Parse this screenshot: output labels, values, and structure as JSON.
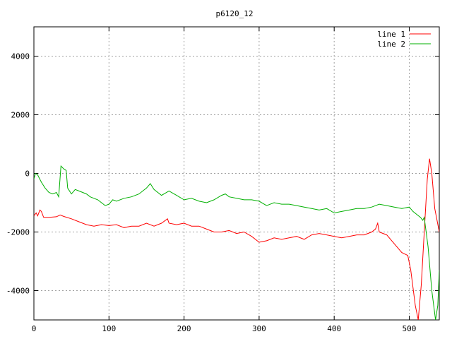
{
  "chart_data": {
    "type": "line",
    "title": "p6120_12",
    "xlabel": "",
    "ylabel": "",
    "xlim": [
      0,
      540
    ],
    "ylim": [
      -5000,
      5000
    ],
    "x_ticks": [
      0,
      100,
      200,
      300,
      400,
      500
    ],
    "y_ticks": [
      -4000,
      -2000,
      0,
      2000,
      4000
    ],
    "x_tick_labels": [
      "0",
      "100",
      "200",
      "300",
      "400",
      "500"
    ],
    "y_tick_labels": [
      "-4000",
      "-2000",
      "0",
      "2000",
      "4000"
    ],
    "grid": true,
    "legend_position": "top-right",
    "series": [
      {
        "name": "line 1",
        "color": "#ff0000",
        "points": [
          [
            0,
            -1450
          ],
          [
            3,
            -1350
          ],
          [
            5,
            -1450
          ],
          [
            8,
            -1250
          ],
          [
            10,
            -1300
          ],
          [
            13,
            -1500
          ],
          [
            20,
            -1500
          ],
          [
            30,
            -1480
          ],
          [
            35,
            -1420
          ],
          [
            40,
            -1470
          ],
          [
            50,
            -1550
          ],
          [
            60,
            -1650
          ],
          [
            70,
            -1750
          ],
          [
            80,
            -1800
          ],
          [
            90,
            -1750
          ],
          [
            100,
            -1780
          ],
          [
            110,
            -1750
          ],
          [
            120,
            -1850
          ],
          [
            130,
            -1800
          ],
          [
            140,
            -1800
          ],
          [
            150,
            -1700
          ],
          [
            160,
            -1800
          ],
          [
            170,
            -1700
          ],
          [
            178,
            -1550
          ],
          [
            180,
            -1700
          ],
          [
            190,
            -1750
          ],
          [
            200,
            -1700
          ],
          [
            210,
            -1800
          ],
          [
            220,
            -1800
          ],
          [
            230,
            -1900
          ],
          [
            240,
            -2000
          ],
          [
            250,
            -2000
          ],
          [
            260,
            -1950
          ],
          [
            270,
            -2050
          ],
          [
            280,
            -2000
          ],
          [
            290,
            -2150
          ],
          [
            300,
            -2350
          ],
          [
            310,
            -2300
          ],
          [
            320,
            -2200
          ],
          [
            330,
            -2250
          ],
          [
            340,
            -2200
          ],
          [
            350,
            -2150
          ],
          [
            360,
            -2250
          ],
          [
            370,
            -2100
          ],
          [
            380,
            -2050
          ],
          [
            390,
            -2100
          ],
          [
            400,
            -2150
          ],
          [
            410,
            -2200
          ],
          [
            420,
            -2150
          ],
          [
            430,
            -2100
          ],
          [
            440,
            -2100
          ],
          [
            450,
            -2000
          ],
          [
            455,
            -1900
          ],
          [
            458,
            -1700
          ],
          [
            460,
            -2000
          ],
          [
            470,
            -2100
          ],
          [
            480,
            -2400
          ],
          [
            490,
            -2700
          ],
          [
            498,
            -2800
          ],
          [
            502,
            -3300
          ],
          [
            508,
            -4500
          ],
          [
            512,
            -5000
          ],
          [
            516,
            -3800
          ],
          [
            520,
            -2000
          ],
          [
            524,
            -200
          ],
          [
            527,
            500
          ],
          [
            530,
            0
          ],
          [
            534,
            -1200
          ],
          [
            537,
            -1600
          ],
          [
            540,
            -2000
          ]
        ]
      },
      {
        "name": "line 2",
        "color": "#00b000",
        "points": [
          [
            0,
            -200
          ],
          [
            2,
            0
          ],
          [
            5,
            -50
          ],
          [
            10,
            -300
          ],
          [
            15,
            -500
          ],
          [
            20,
            -650
          ],
          [
            25,
            -700
          ],
          [
            30,
            -650
          ],
          [
            33,
            -800
          ],
          [
            36,
            250
          ],
          [
            40,
            150
          ],
          [
            43,
            100
          ],
          [
            45,
            -500
          ],
          [
            50,
            -700
          ],
          [
            55,
            -550
          ],
          [
            60,
            -600
          ],
          [
            65,
            -650
          ],
          [
            70,
            -700
          ],
          [
            75,
            -800
          ],
          [
            80,
            -850
          ],
          [
            85,
            -900
          ],
          [
            90,
            -1000
          ],
          [
            95,
            -1100
          ],
          [
            100,
            -1050
          ],
          [
            105,
            -900
          ],
          [
            110,
            -950
          ],
          [
            120,
            -850
          ],
          [
            130,
            -800
          ],
          [
            140,
            -700
          ],
          [
            150,
            -500
          ],
          [
            155,
            -350
          ],
          [
            160,
            -550
          ],
          [
            170,
            -750
          ],
          [
            180,
            -600
          ],
          [
            190,
            -750
          ],
          [
            200,
            -900
          ],
          [
            210,
            -850
          ],
          [
            220,
            -950
          ],
          [
            230,
            -1000
          ],
          [
            240,
            -900
          ],
          [
            250,
            -750
          ],
          [
            255,
            -700
          ],
          [
            260,
            -800
          ],
          [
            270,
            -850
          ],
          [
            280,
            -900
          ],
          [
            290,
            -900
          ],
          [
            300,
            -950
          ],
          [
            310,
            -1100
          ],
          [
            320,
            -1000
          ],
          [
            330,
            -1050
          ],
          [
            340,
            -1050
          ],
          [
            350,
            -1100
          ],
          [
            360,
            -1150
          ],
          [
            370,
            -1200
          ],
          [
            380,
            -1250
          ],
          [
            390,
            -1200
          ],
          [
            400,
            -1350
          ],
          [
            410,
            -1300
          ],
          [
            420,
            -1250
          ],
          [
            430,
            -1200
          ],
          [
            440,
            -1200
          ],
          [
            450,
            -1150
          ],
          [
            460,
            -1050
          ],
          [
            470,
            -1100
          ],
          [
            480,
            -1150
          ],
          [
            490,
            -1200
          ],
          [
            500,
            -1150
          ],
          [
            505,
            -1300
          ],
          [
            510,
            -1400
          ],
          [
            515,
            -1500
          ],
          [
            518,
            -1600
          ],
          [
            520,
            -1500
          ],
          [
            525,
            -2500
          ],
          [
            530,
            -4000
          ],
          [
            535,
            -5000
          ],
          [
            538,
            -4500
          ],
          [
            540,
            -3300
          ]
        ]
      }
    ]
  }
}
